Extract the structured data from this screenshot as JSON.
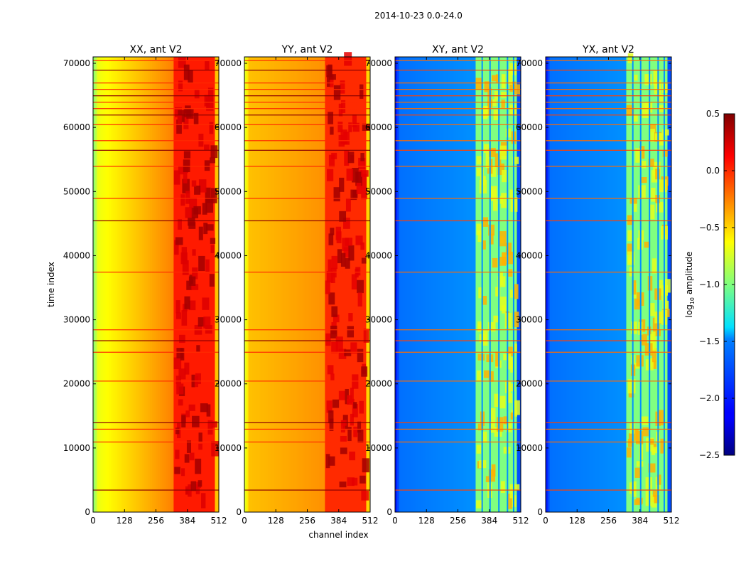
{
  "figure": {
    "suptitle": "2014-10-23 0.0-24.0",
    "colorbar_label_prefix": "log",
    "colorbar_label_sub": "10",
    "colorbar_label_suffix": " amplitude",
    "colorbar_ticks": [
      "0.5",
      "0.0",
      "−0.5",
      "−1.0",
      "−1.5",
      "−2.0",
      "−2.5"
    ]
  },
  "chart_data": [
    {
      "type": "heatmap",
      "title": "XX, ant V2",
      "xlabel": "",
      "ylabel": "time index",
      "xlim": [
        0,
        512
      ],
      "ylim": [
        0,
        71000
      ],
      "xticks": [
        "0",
        "128",
        "256",
        "384",
        "512"
      ],
      "yticks": [
        "0",
        "10000",
        "20000",
        "30000",
        "40000",
        "50000",
        "60000",
        "70000"
      ],
      "colormap": "jet",
      "value_label": "log10 amplitude",
      "value_range": [
        -2.5,
        0.5
      ],
      "description_levels": {
        "low_channels": -0.7,
        "mid_channels": -0.25,
        "high_channels": 0.05,
        "peaks": 0.4
      }
    },
    {
      "type": "heatmap",
      "title": "YY, ant V2",
      "xlabel": "channel index",
      "ylabel": "",
      "xlim": [
        0,
        512
      ],
      "ylim": [
        0,
        71000
      ],
      "xticks": [
        "0",
        "128",
        "256",
        "384",
        "512"
      ],
      "yticks": [
        "0",
        "10000",
        "20000",
        "30000",
        "40000",
        "50000",
        "60000",
        "70000"
      ],
      "colormap": "jet",
      "value_label": "log10 amplitude",
      "value_range": [
        -2.5,
        0.5
      ],
      "description_levels": {
        "low_channels": -0.45,
        "mid_channels": -0.3,
        "high_channels": 0.0,
        "peaks": 0.4
      }
    },
    {
      "type": "heatmap",
      "title": "XY, ant V2",
      "xlabel": "",
      "ylabel": "",
      "xlim": [
        0,
        512
      ],
      "ylim": [
        0,
        71000
      ],
      "xticks": [
        "0",
        "128",
        "256",
        "384",
        "512"
      ],
      "yticks": [
        "0",
        "10000",
        "20000",
        "30000",
        "40000",
        "50000",
        "60000",
        "70000"
      ],
      "colormap": "jet",
      "value_label": "log10 amplitude",
      "value_range": [
        -2.5,
        0.5
      ],
      "description_levels": {
        "low_channels": -1.8,
        "mid_channels": -1.7,
        "high_channels": -1.0,
        "peaks": -0.4
      }
    },
    {
      "type": "heatmap",
      "title": "YX, ant V2",
      "xlabel": "",
      "ylabel": "",
      "xlim": [
        0,
        512
      ],
      "ylim": [
        0,
        71000
      ],
      "xticks": [
        "0",
        "128",
        "256",
        "384",
        "512"
      ],
      "yticks": [
        "0",
        "10000",
        "20000",
        "30000",
        "40000",
        "50000",
        "60000",
        "70000"
      ],
      "colormap": "jet",
      "value_label": "log10 amplitude",
      "value_range": [
        -2.5,
        0.5
      ],
      "description_levels": {
        "low_channels": -1.8,
        "mid_channels": -1.7,
        "high_channels": -1.0,
        "peaks": -0.4
      }
    }
  ],
  "flagged_time_rows": [
    3500,
    11000,
    13000,
    14000,
    20500,
    25000,
    26800,
    28500,
    37500,
    45500,
    49000,
    54000,
    56500,
    58000,
    60500,
    62000,
    63000,
    64000,
    65000,
    66000,
    67000,
    69000,
    70500
  ],
  "band_edge_channel": 322
}
